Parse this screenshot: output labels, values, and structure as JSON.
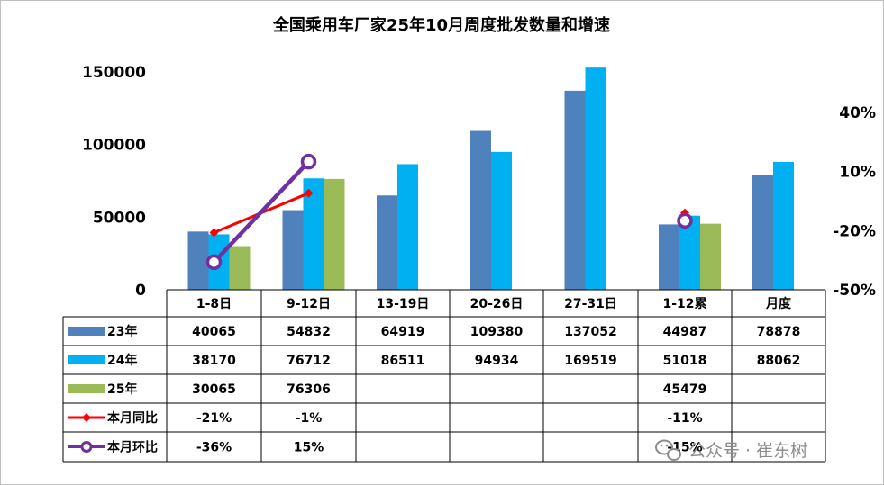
{
  "chart_data": {
    "type": "bar",
    "title": "全国乘用车厂家25年10月周度批发数量和增速",
    "categories": [
      "1-8日",
      "9-12日",
      "13-19日",
      "20-26日",
      "27-31日",
      "1-12累",
      "月度"
    ],
    "y_left": {
      "ylim": [
        0,
        150000
      ],
      "ticks": [
        "0",
        "50000",
        "100000",
        "150000"
      ]
    },
    "y_right": {
      "ylim": [
        -50,
        50
      ],
      "ticks": [
        "-50%",
        "-20%",
        "10%",
        "40%"
      ]
    },
    "series": [
      {
        "name": "23年",
        "type": "bar",
        "axis": "left",
        "color": "#4f81bd",
        "values": [
          40065,
          54832,
          64919,
          109380,
          137052,
          44987,
          78878
        ],
        "labels": [
          "40065",
          "54832",
          "64919",
          "109380",
          "137052",
          "44987",
          "78878"
        ]
      },
      {
        "name": "24年",
        "type": "bar",
        "axis": "left",
        "color": "#00b0f0",
        "values": [
          38170,
          76712,
          86511,
          94934,
          169519,
          51018,
          88062
        ],
        "labels": [
          "38170",
          "76712",
          "86511",
          "94934",
          "169519",
          "51018",
          "88062"
        ]
      },
      {
        "name": "25年",
        "type": "bar",
        "axis": "left",
        "color": "#9bbb59",
        "values": [
          30065,
          76306,
          null,
          null,
          null,
          45479,
          null
        ],
        "labels": [
          "30065",
          "76306",
          "",
          "",
          "",
          "45479",
          ""
        ]
      },
      {
        "name": "本月同比",
        "type": "line",
        "axis": "right",
        "color": "#ff0000",
        "marker": "diamond",
        "values": [
          -21,
          -1,
          null,
          null,
          null,
          -11,
          null
        ],
        "labels": [
          "-21%",
          "-1%",
          "",
          "",
          "",
          "-11%",
          ""
        ]
      },
      {
        "name": "本月环比",
        "type": "line",
        "axis": "right",
        "color": "#7030a0",
        "marker": "circle",
        "values": [
          -36,
          15,
          null,
          null,
          null,
          -15,
          null
        ],
        "labels": [
          "-36%",
          "15%",
          "",
          "",
          "",
          "-15%",
          ""
        ]
      }
    ],
    "legend": "data-table",
    "grid": false
  },
  "watermark": {
    "text": "公众号 · 崔东树",
    "icon": "wechat-icon"
  }
}
